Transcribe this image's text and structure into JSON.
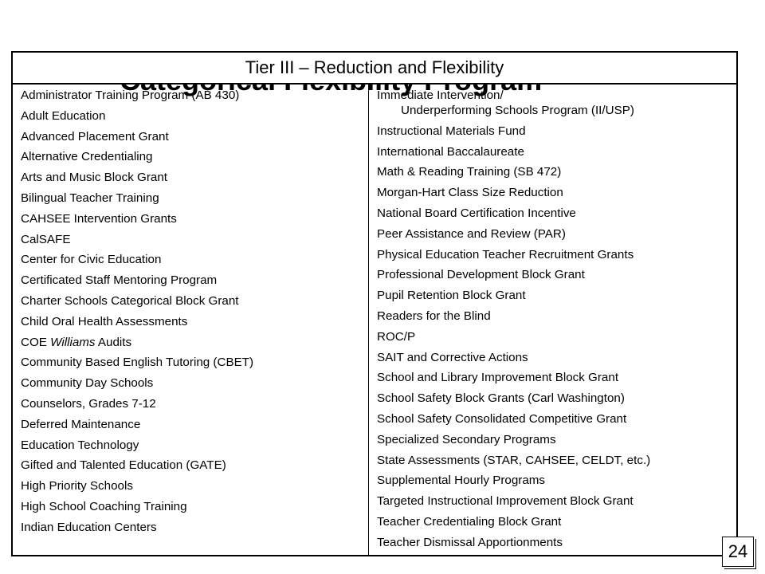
{
  "header": {
    "title": "Tier III – Reduction and Flexibility"
  },
  "background_title": "Categorical Flexibility Program",
  "left_column": [
    {
      "text": "Administrator Training Program (AB 430)"
    },
    {
      "text": "Adult Education"
    },
    {
      "text": "Advanced Placement Grant"
    },
    {
      "text": "Alternative Credentialing"
    },
    {
      "text": "Arts and Music Block Grant"
    },
    {
      "text": "Bilingual Teacher Training"
    },
    {
      "text": "CAHSEE Intervention Grants"
    },
    {
      "text": "CalSAFE"
    },
    {
      "text": "Center for Civic Education"
    },
    {
      "text": "Certificated Staff Mentoring Program"
    },
    {
      "text": "Charter Schools Categorical Block Grant"
    },
    {
      "text": "Child Oral Health Assessments"
    },
    {
      "pre": "COE ",
      "italic": "Williams",
      "post": " Audits"
    },
    {
      "text": "Community Based English Tutoring (CBET)"
    },
    {
      "text": "Community Day Schools"
    },
    {
      "text": "Counselors, Grades 7-12"
    },
    {
      "text": "Deferred Maintenance"
    },
    {
      "text": "Education Technology"
    },
    {
      "text": "Gifted and Talented Education (GATE)"
    },
    {
      "text": "High Priority Schools"
    },
    {
      "text": "High School Coaching Training"
    },
    {
      "text": "Indian Education Centers"
    }
  ],
  "right_column_first": {
    "line1": "Immediate Intervention/",
    "line2": "Underperforming Schools Program (II/USP)"
  },
  "right_column": [
    {
      "text": "Instructional Materials Fund"
    },
    {
      "text": "International Baccalaureate"
    },
    {
      "text": "Math & Reading Training (SB 472)"
    },
    {
      "text": "Morgan-Hart Class Size Reduction"
    },
    {
      "text": "National Board Certification Incentive"
    },
    {
      "text": "Peer Assistance and Review (PAR)"
    },
    {
      "text": "Physical Education Teacher Recruitment Grants"
    },
    {
      "text": "Professional Development Block Grant"
    },
    {
      "text": "Pupil Retention Block Grant"
    },
    {
      "text": "Readers for the Blind"
    },
    {
      "text": "ROC/P"
    },
    {
      "text": "SAIT and Corrective Actions"
    },
    {
      "text": "School and Library Improvement Block Grant"
    },
    {
      "text": "School Safety Block Grants (Carl Washington)"
    },
    {
      "text": "School Safety Consolidated Competitive Grant"
    },
    {
      "text": "Specialized Secondary Programs"
    },
    {
      "text": "State Assessments (STAR, CAHSEE, CELDT, etc.)"
    },
    {
      "text": "Supplemental Hourly Programs"
    },
    {
      "text": "Targeted Instructional Improvement Block Grant"
    },
    {
      "text": "Teacher Credentialing Block Grant"
    },
    {
      "text": "Teacher Dismissal Apportionments"
    }
  ],
  "page_number": "24"
}
